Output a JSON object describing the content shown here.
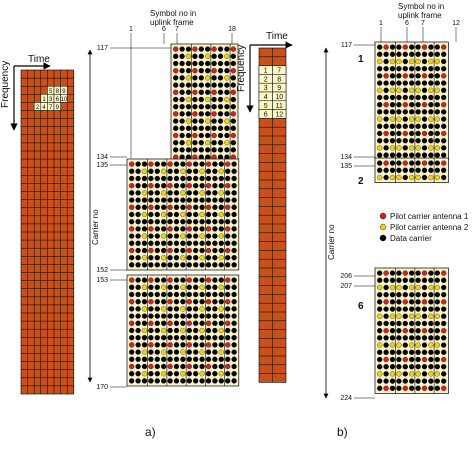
{
  "left_grid": {
    "time_label": "Time",
    "frequency_label": "Frequency",
    "cell_numbers": [
      [
        "",
        "",
        "",
        "",
        "5",
        "8",
        "9",
        ""
      ],
      [
        "",
        "",
        "",
        "1",
        "3",
        "6",
        "10",
        ""
      ],
      [
        "",
        "",
        "2",
        "4",
        "7",
        "9",
        "",
        ""
      ]
    ]
  },
  "panel_a": {
    "header_line1": "Symbol no in",
    "header_line2": "uplink frame",
    "symbol_ticks": [
      "1",
      "6",
      "7",
      "18"
    ],
    "carrier_axis_label": "Carrier no",
    "carrier_ticks": [
      "117",
      "134",
      "135",
      "152",
      "153",
      "170"
    ],
    "caption": "a)"
  },
  "middle_grid": {
    "time_label": "Time",
    "frequency_label": "Frequency",
    "pairs": [
      [
        "1",
        "7"
      ],
      [
        "2",
        "8"
      ],
      [
        "3",
        "9"
      ],
      [
        "4",
        "10"
      ],
      [
        "5",
        "11"
      ],
      [
        "6",
        "12"
      ]
    ]
  },
  "panel_b": {
    "header_line1": "Symbol no in",
    "header_line2": "uplink frame",
    "symbol_ticks": [
      "1",
      "6",
      "7",
      "12"
    ],
    "carrier_axis_label": "Carrier no",
    "carrier_ticks": [
      "117",
      "134",
      "135",
      "206",
      "207",
      "224"
    ],
    "block_labels": [
      "1",
      "2",
      "6"
    ],
    "caption": "b)"
  },
  "legend": {
    "items": [
      {
        "label": "Pilot carrier antenna 1",
        "color": "#d42020"
      },
      {
        "label": "Pilot carrier antenna 2",
        "color": "#e8d21a"
      },
      {
        "label": "Data carrier",
        "color": "#000000"
      }
    ]
  },
  "colors": {
    "grid_fill": "#c8501a",
    "block_fill": "#fdf3c8",
    "pilot_1": "#d42020",
    "pilot_2": "#e8d21a",
    "data": "#000000"
  }
}
